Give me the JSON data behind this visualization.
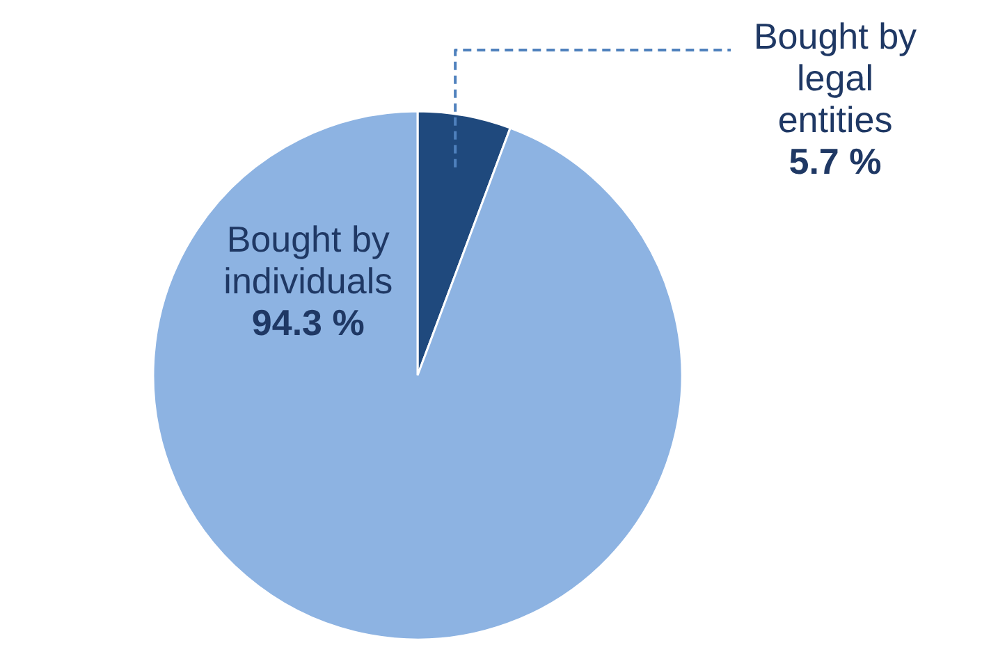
{
  "chart_data": {
    "type": "pie",
    "categories": [
      "Bought by legal entities",
      "Bought by individuals"
    ],
    "values": [
      5.7,
      94.3
    ],
    "colors": [
      "#1f497d",
      "#8db3e2"
    ],
    "value_labels": [
      "5.7 %",
      "94.3 %"
    ]
  }
}
